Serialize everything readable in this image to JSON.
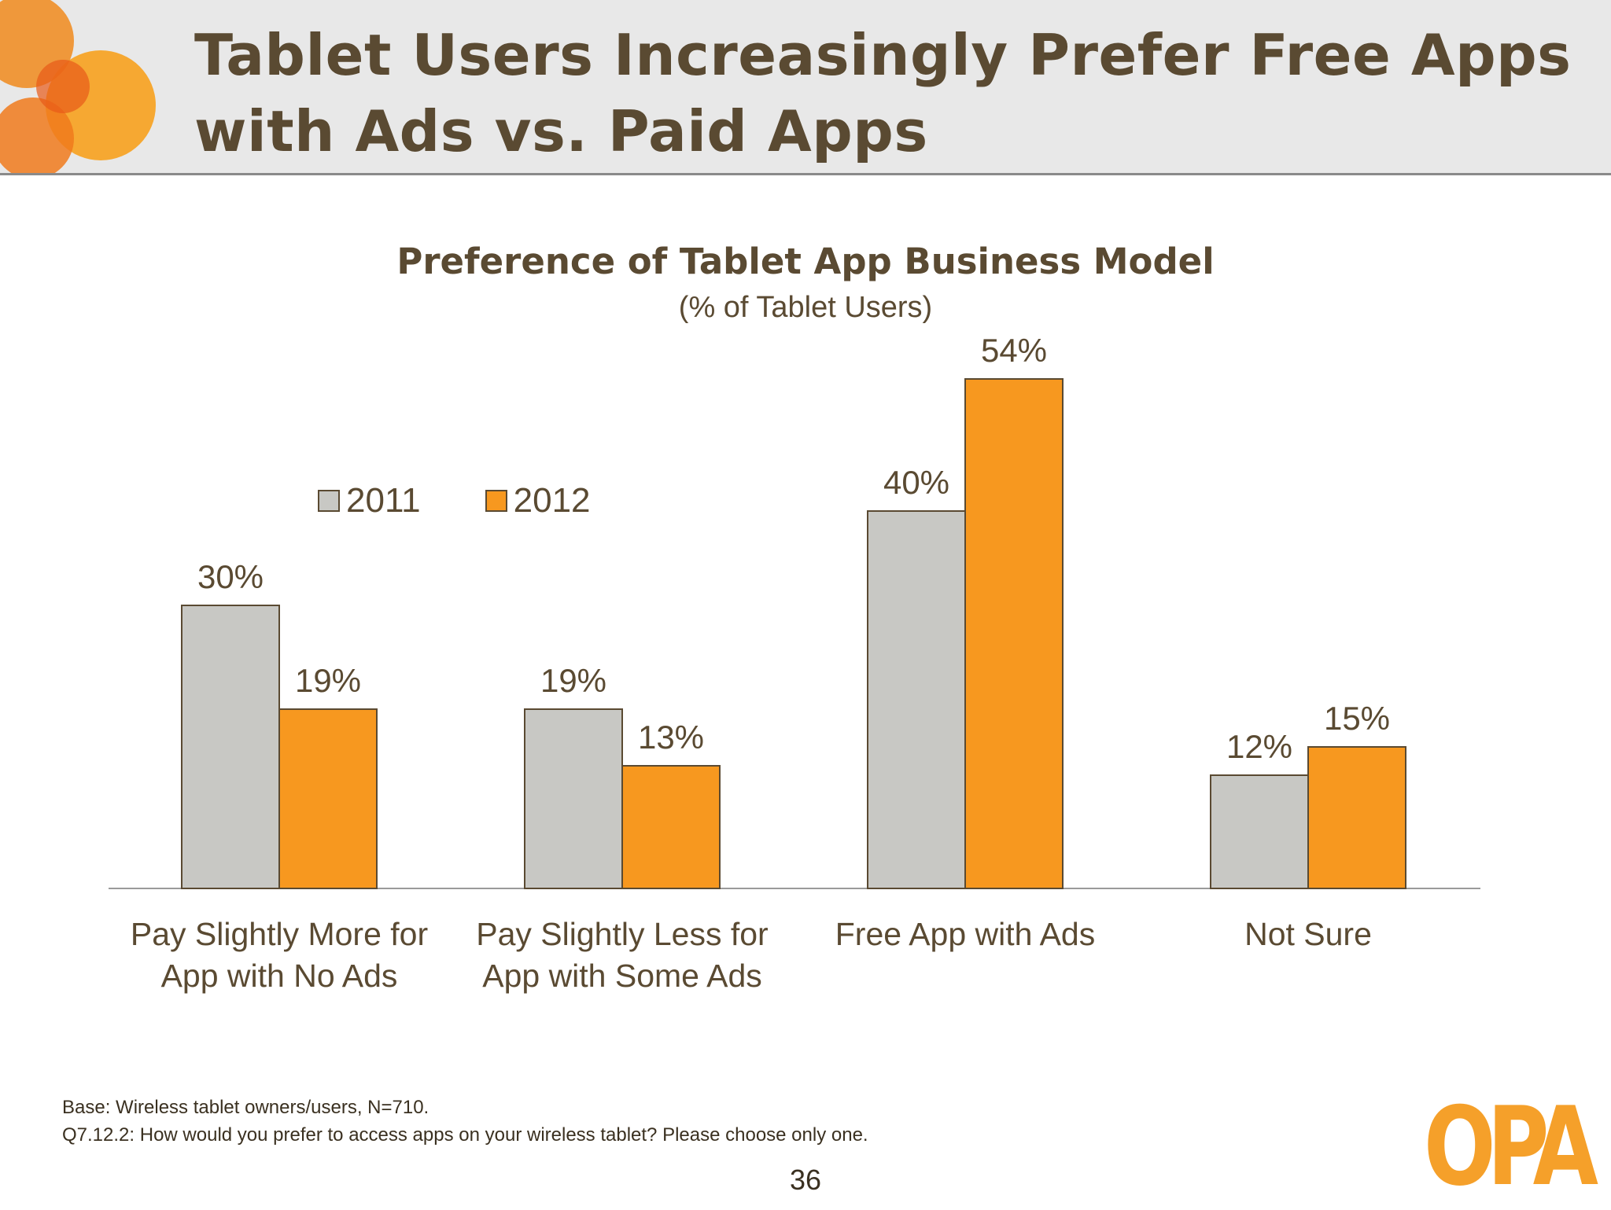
{
  "slide": {
    "title_line1": "Tablet Users Increasingly Prefer Free Apps",
    "title_line2": "with Ads vs. Paid Apps",
    "footnote_base": "Base: Wireless tablet owners/users, N=710.",
    "footnote_question": "Q7.12.2:  How would you prefer to access apps on your wireless tablet? Please choose only one.",
    "page_number": "36",
    "logo_text": "OPA"
  },
  "colors": {
    "header_bg": "#e8e8e8",
    "series_2011": "#c8c8c4",
    "series_2012": "#f7981f",
    "text": "#5a4a32",
    "accent_orange": "#f5a02a"
  },
  "chart_data": {
    "type": "bar",
    "title": "Preference of Tablet App Business Model",
    "subtitle": "(% of Tablet Users)",
    "categories": [
      [
        "Pay Slightly More for",
        "App with No Ads"
      ],
      [
        "Pay Slightly Less for",
        "App with Some Ads"
      ],
      [
        "Free App with Ads"
      ],
      [
        "Not Sure"
      ]
    ],
    "series": [
      {
        "name": "2011",
        "values": [
          30,
          19,
          40,
          12
        ],
        "labels": [
          "30%",
          "19%",
          "40%",
          "12%"
        ]
      },
      {
        "name": "2012",
        "values": [
          19,
          13,
          54,
          15
        ],
        "labels": [
          "19%",
          "13%",
          "54%",
          "15%"
        ]
      }
    ],
    "ylim": [
      0,
      60
    ],
    "grid": false,
    "legend_position": "top-left"
  }
}
